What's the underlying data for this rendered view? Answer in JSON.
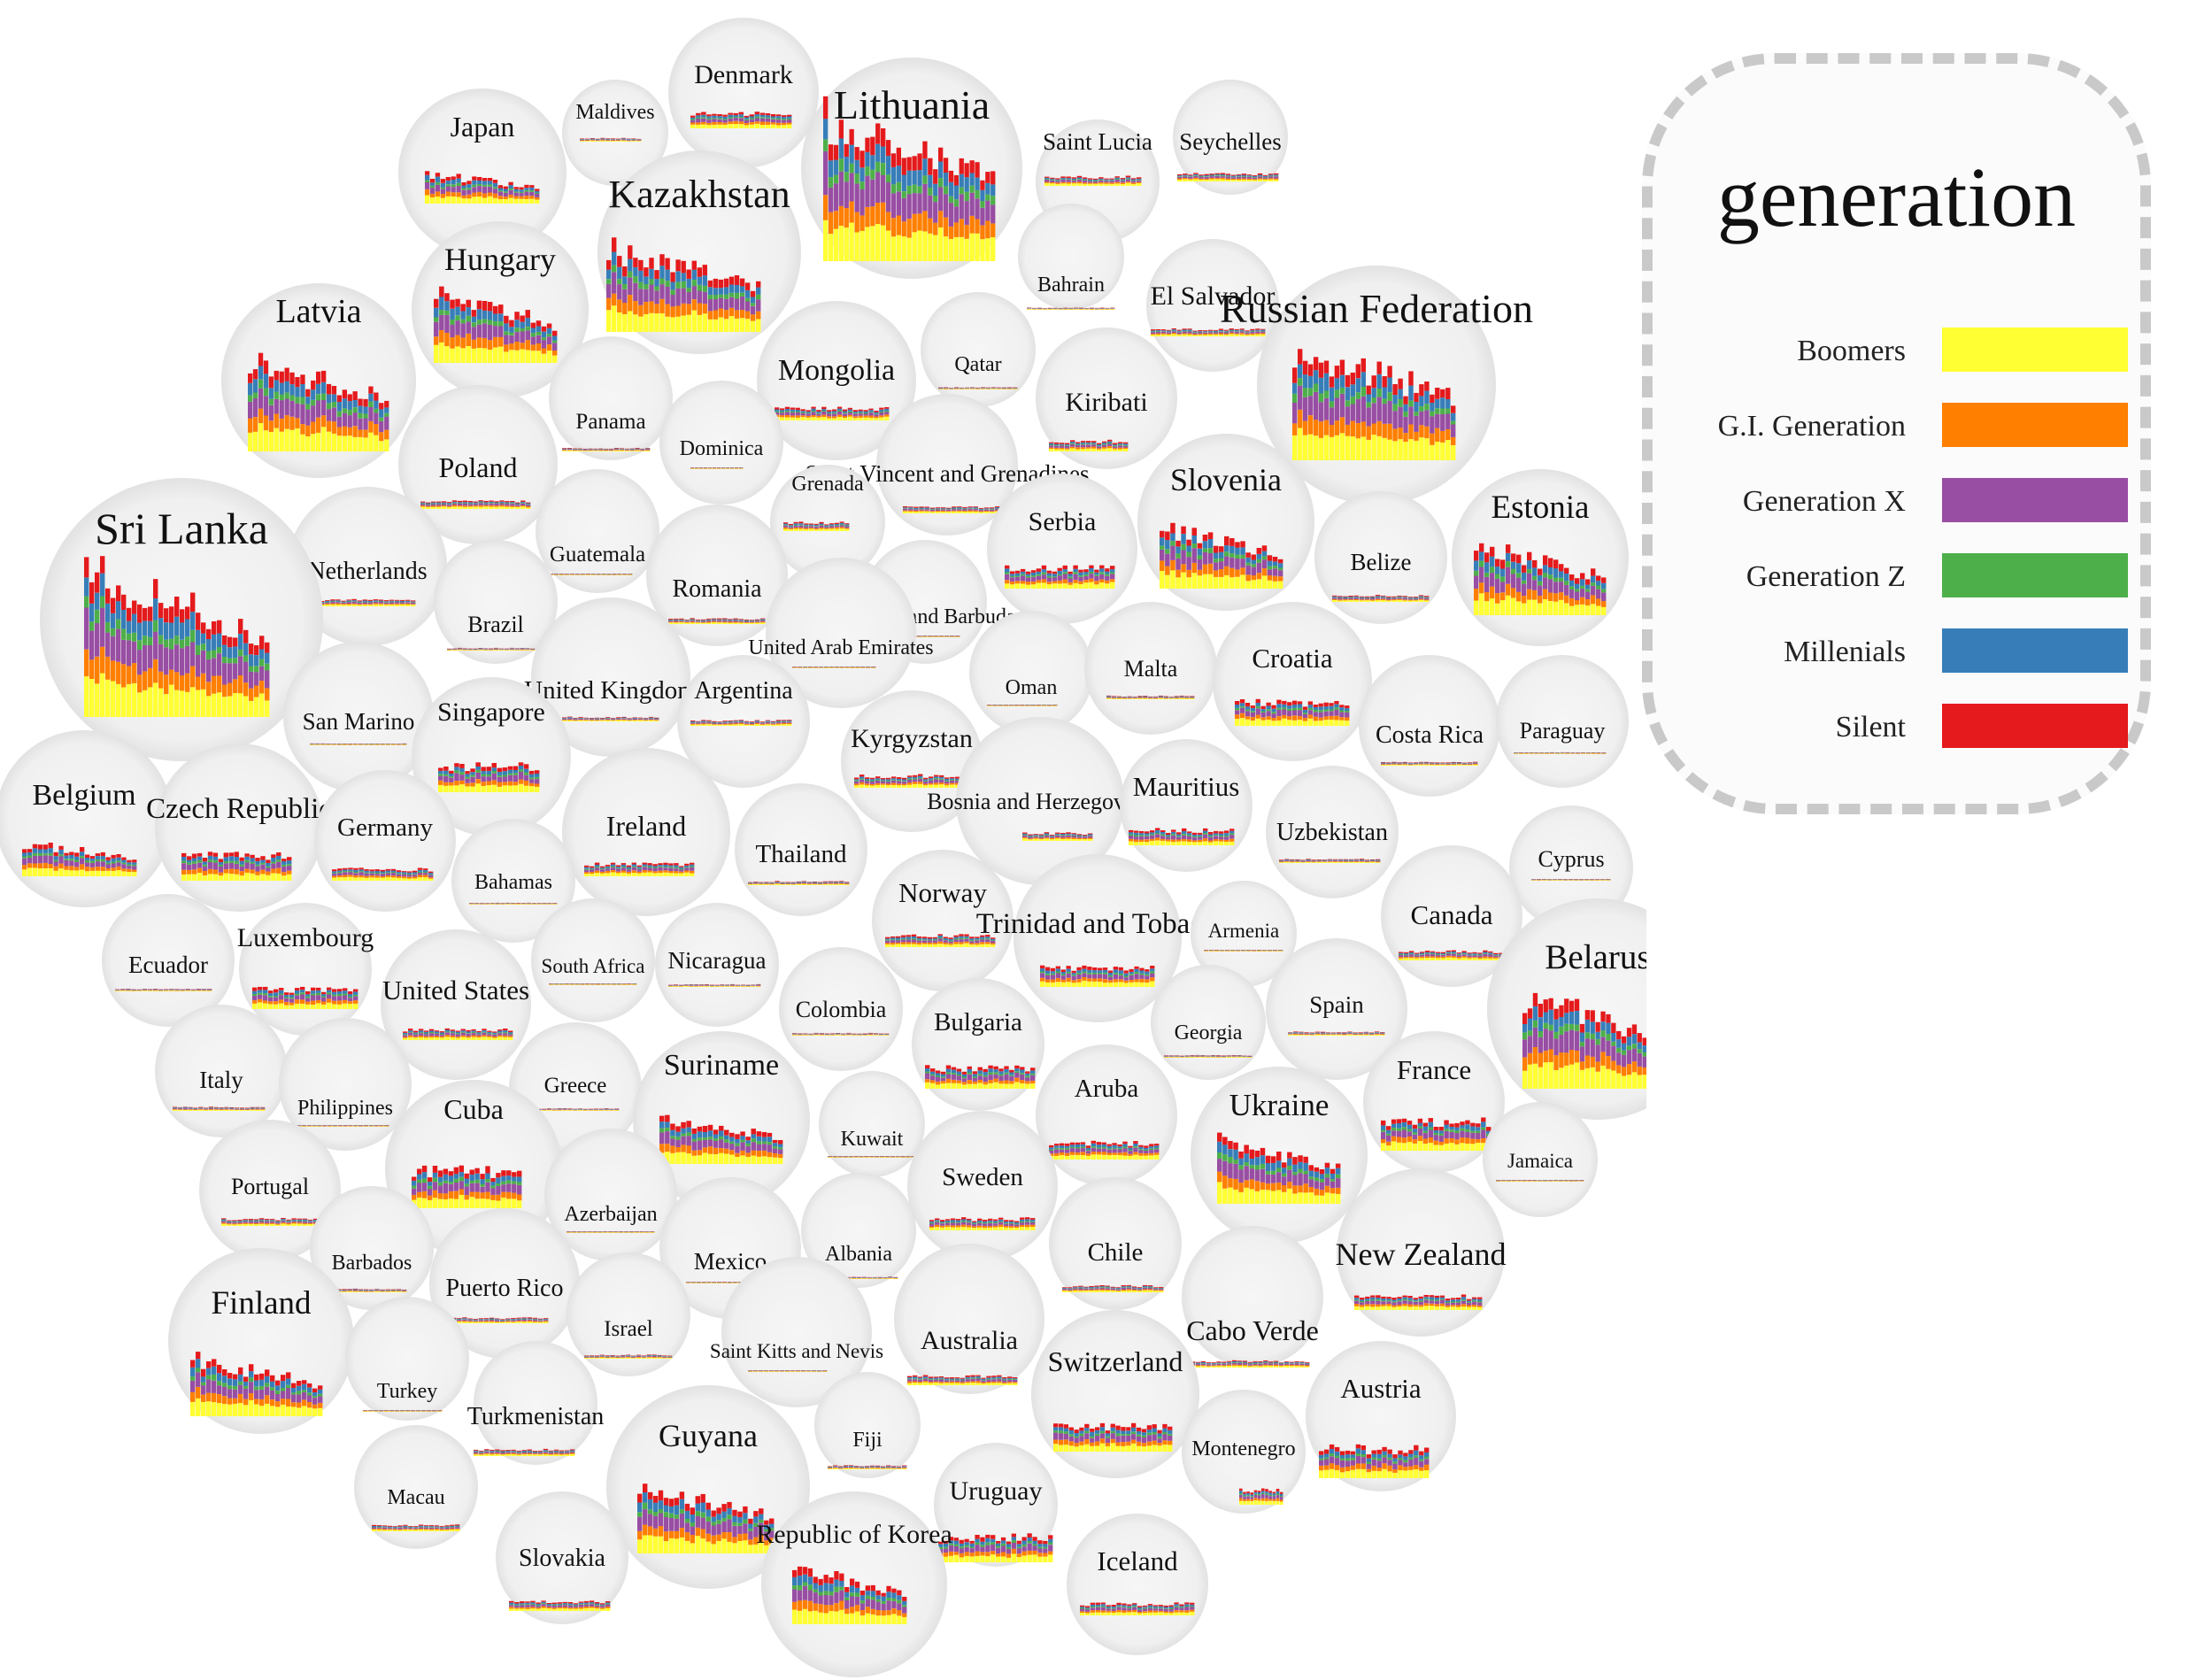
{
  "legend": {
    "title": "generation",
    "items": [
      {
        "label": "Boomers",
        "color": "#ffff33"
      },
      {
        "label": "G.I. Generation",
        "color": "#ff7f00"
      },
      {
        "label": "Generation X",
        "color": "#984ea3"
      },
      {
        "label": "Generation Z",
        "color": "#4daf4a"
      },
      {
        "label": "Millenials",
        "color": "#377eb8"
      },
      {
        "label": "Silent",
        "color": "#e41a1c"
      }
    ]
  },
  "chart_data": {
    "type": "bar",
    "description_kind": "packed bubbles with stacked bar glyphs per country",
    "series_order": [
      "Boomers",
      "G.I. Generation",
      "Generation X",
      "Generation Z",
      "Millenials",
      "Silent"
    ],
    "countries": [
      {
        "name": "Japan",
        "size": 0.7
      },
      {
        "name": "Maldives",
        "size": 0.1
      },
      {
        "name": "Denmark",
        "size": 0.45
      },
      {
        "name": "Lithuania",
        "size": 1.7
      },
      {
        "name": "Saint Lucia",
        "size": 0.3
      },
      {
        "name": "Seychelles",
        "size": 0.3
      },
      {
        "name": "Kazakhstan",
        "size": 1.1
      },
      {
        "name": "Bahrain",
        "size": 0.05
      },
      {
        "name": "El Salvador",
        "size": 0.25
      },
      {
        "name": "Hungary",
        "size": 1.0
      },
      {
        "name": "Latvia",
        "size": 1.2
      },
      {
        "name": "Mongolia",
        "size": 0.4
      },
      {
        "name": "Qatar",
        "size": 0.05
      },
      {
        "name": "Kiribati",
        "size": 0.3
      },
      {
        "name": "Russian Federation",
        "size": 1.4
      },
      {
        "name": "Panama",
        "size": 0.1
      },
      {
        "name": "Poland",
        "size": 0.3
      },
      {
        "name": "Dominica",
        "size": 0.05
      },
      {
        "name": "Saint Vincent and Grenadines",
        "size": 0.2
      },
      {
        "name": "Grenada",
        "size": 0.2
      },
      {
        "name": "Slovenia",
        "size": 1.0
      },
      {
        "name": "Guatemala",
        "size": 0.05
      },
      {
        "name": "Serbia",
        "size": 0.5
      },
      {
        "name": "Belize",
        "size": 0.2
      },
      {
        "name": "Estonia",
        "size": 1.0
      },
      {
        "name": "Netherlands",
        "size": 0.3
      },
      {
        "name": "Sri Lanka",
        "size": 1.6
      },
      {
        "name": "Romania",
        "size": 0.2
      },
      {
        "name": "Antigua and Barbuda",
        "size": 0.05
      },
      {
        "name": "Brazil",
        "size": 0.1
      },
      {
        "name": "United Arab Emirates",
        "size": 0.05
      },
      {
        "name": "United Kingdom",
        "size": 0.2
      },
      {
        "name": "Oman",
        "size": 0.05
      },
      {
        "name": "Malta",
        "size": 0.1
      },
      {
        "name": "Croatia",
        "size": 0.6
      },
      {
        "name": "Costa Rica",
        "size": 0.15
      },
      {
        "name": "Paraguay",
        "size": 0.05
      },
      {
        "name": "San Marino",
        "size": 0.05
      },
      {
        "name": "Argentina",
        "size": 0.2
      },
      {
        "name": "Singapore",
        "size": 0.5
      },
      {
        "name": "Kyrgyzstan",
        "size": 0.4
      },
      {
        "name": "Bosnia and Herzegovina",
        "size": 0.3
      },
      {
        "name": "Mauritius",
        "size": 0.4
      },
      {
        "name": "Uzbekistan",
        "size": 0.15
      },
      {
        "name": "Belgium",
        "size": 0.7
      },
      {
        "name": "Czech Republic",
        "size": 0.6
      },
      {
        "name": "Germany",
        "size": 0.3
      },
      {
        "name": "Ireland",
        "size": 0.4
      },
      {
        "name": "Thailand",
        "size": 0.15
      },
      {
        "name": "Cyprus",
        "size": 0.05
      },
      {
        "name": "Bahamas",
        "size": 0.05
      },
      {
        "name": "Norway",
        "size": 0.3
      },
      {
        "name": "Trinidad and Tobago",
        "size": 0.5
      },
      {
        "name": "Armenia",
        "size": 0.05
      },
      {
        "name": "Canada",
        "size": 0.3
      },
      {
        "name": "Ecuador",
        "size": 0.1
      },
      {
        "name": "Luxembourg",
        "size": 0.4
      },
      {
        "name": "South Africa",
        "size": 0.05
      },
      {
        "name": "Nicaragua",
        "size": 0.1
      },
      {
        "name": "United States",
        "size": 0.3
      },
      {
        "name": "Colombia",
        "size": 0.1
      },
      {
        "name": "Georgia",
        "size": 0.1
      },
      {
        "name": "Spain",
        "size": 0.15
      },
      {
        "name": "Belarus",
        "size": 1.3
      },
      {
        "name": "Italy",
        "size": 0.15
      },
      {
        "name": "Philippines",
        "size": 0.05
      },
      {
        "name": "Greece",
        "size": 0.1
      },
      {
        "name": "Bulgaria",
        "size": 0.5
      },
      {
        "name": "Suriname",
        "size": 0.8
      },
      {
        "name": "Kuwait",
        "size": 0.05
      },
      {
        "name": "Aruba",
        "size": 0.3
      },
      {
        "name": "Ukraine",
        "size": 0.9
      },
      {
        "name": "France",
        "size": 0.6
      },
      {
        "name": "Jamaica",
        "size": 0.05
      },
      {
        "name": "Cuba",
        "size": 0.6
      },
      {
        "name": "Portugal",
        "size": 0.25
      },
      {
        "name": "Azerbaijan",
        "size": 0.05
      },
      {
        "name": "Sweden",
        "size": 0.3
      },
      {
        "name": "Chile",
        "size": 0.2
      },
      {
        "name": "New Zealand",
        "size": 0.4
      },
      {
        "name": "Barbados",
        "size": 0.1
      },
      {
        "name": "Mexico",
        "size": 0.05
      },
      {
        "name": "Albania",
        "size": 0.05
      },
      {
        "name": "Puerto Rico",
        "size": 0.2
      },
      {
        "name": "Finland",
        "size": 0.9
      },
      {
        "name": "Israel",
        "size": 0.15
      },
      {
        "name": "Saint Kitts and Nevis",
        "size": 0.05
      },
      {
        "name": "Australia",
        "size": 0.3
      },
      {
        "name": "Cabo Verde",
        "size": 0.3
      },
      {
        "name": "Turkey",
        "size": 0.05
      },
      {
        "name": "Switzerland",
        "size": 0.4
      },
      {
        "name": "Turkmenistan",
        "size": 0.2
      },
      {
        "name": "Austria",
        "size": 0.5
      },
      {
        "name": "Fiji",
        "size": 0.15
      },
      {
        "name": "Montenegro",
        "size": 0.4
      },
      {
        "name": "Macau",
        "size": 0.3
      },
      {
        "name": "Guyana",
        "size": 1.0
      },
      {
        "name": "Uruguay",
        "size": 0.6
      },
      {
        "name": "Slovakia",
        "size": 0.2
      },
      {
        "name": "Republic of Korea",
        "size": 0.8
      },
      {
        "name": "Iceland",
        "size": 0.3
      }
    ]
  }
}
